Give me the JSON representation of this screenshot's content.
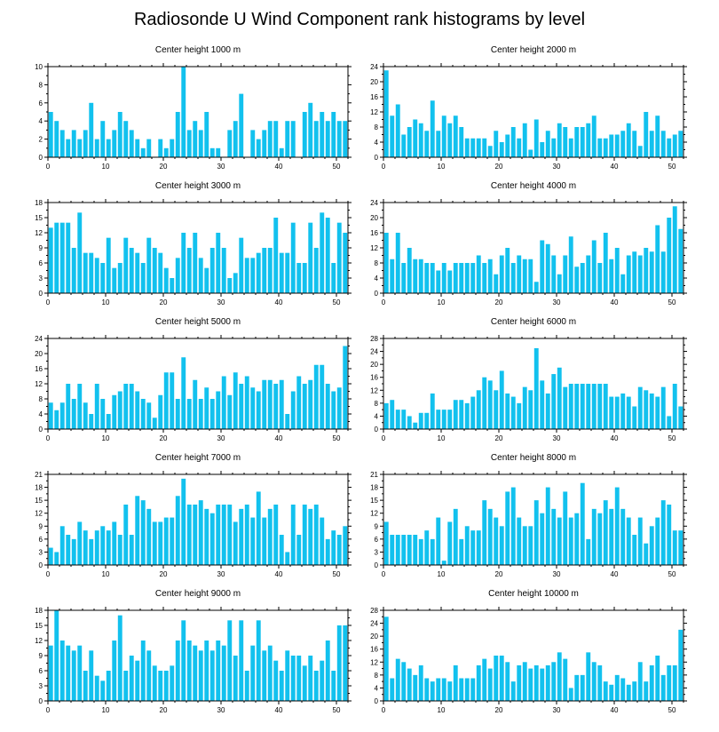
{
  "title": "Radiosonde U Wind Component rank histograms by level",
  "chart_data": [
    {
      "type": "bar",
      "title": "Center height 1000 m",
      "xlim": [
        0,
        52
      ],
      "ylim": [
        0,
        10
      ],
      "xticks": [
        0,
        10,
        20,
        30,
        40,
        50
      ],
      "yticks": [
        0,
        2,
        4,
        6,
        8,
        10
      ],
      "values": [
        5,
        4,
        3,
        2,
        3,
        2,
        3,
        6,
        2,
        4,
        2,
        3,
        5,
        4,
        3,
        2,
        1,
        2,
        0,
        2,
        1,
        2,
        5,
        10,
        3,
        4,
        3,
        5,
        1,
        1,
        0,
        3,
        4,
        7,
        0,
        3,
        2,
        3,
        4,
        4,
        1,
        4,
        4,
        0,
        5,
        6,
        4,
        5,
        4,
        5,
        4,
        4
      ]
    },
    {
      "type": "bar",
      "title": "Center height 2000 m",
      "xlim": [
        0,
        52
      ],
      "ylim": [
        0,
        24
      ],
      "xticks": [
        0,
        10,
        20,
        30,
        40,
        50
      ],
      "yticks": [
        0,
        4,
        8,
        12,
        16,
        20,
        24
      ],
      "values": [
        23,
        11,
        14,
        6,
        8,
        10,
        9,
        7,
        15,
        7,
        11,
        9,
        11,
        8,
        5,
        5,
        5,
        5,
        3,
        7,
        4,
        6,
        8,
        5,
        9,
        2,
        10,
        4,
        7,
        5,
        9,
        8,
        5,
        8,
        8,
        9,
        11,
        5,
        5,
        6,
        6,
        7,
        9,
        7,
        3,
        12,
        7,
        11,
        7,
        5,
        6,
        7
      ]
    },
    {
      "type": "bar",
      "title": "Center height 3000 m",
      "xlim": [
        0,
        52
      ],
      "ylim": [
        0,
        18
      ],
      "xticks": [
        0,
        10,
        20,
        30,
        40,
        50
      ],
      "yticks": [
        0,
        3,
        6,
        9,
        12,
        15,
        18
      ],
      "values": [
        13,
        14,
        14,
        14,
        9,
        16,
        8,
        8,
        7,
        6,
        11,
        5,
        6,
        11,
        9,
        8,
        6,
        11,
        9,
        8,
        5,
        3,
        7,
        12,
        9,
        12,
        7,
        5,
        9,
        12,
        9,
        3,
        4,
        11,
        7,
        7,
        8,
        9,
        9,
        15,
        8,
        8,
        14,
        6,
        6,
        14,
        9,
        16,
        15,
        6,
        14,
        12
      ]
    },
    {
      "type": "bar",
      "title": "Center height 4000 m",
      "xlim": [
        0,
        52
      ],
      "ylim": [
        0,
        24
      ],
      "xticks": [
        0,
        10,
        20,
        30,
        40,
        50
      ],
      "yticks": [
        0,
        4,
        8,
        12,
        16,
        20,
        24
      ],
      "values": [
        16,
        9,
        16,
        8,
        12,
        9,
        9,
        8,
        8,
        6,
        8,
        6,
        8,
        8,
        8,
        8,
        10,
        8,
        9,
        5,
        10,
        12,
        8,
        10,
        9,
        9,
        3,
        14,
        13,
        10,
        5,
        10,
        15,
        7,
        8,
        10,
        14,
        8,
        16,
        9,
        12,
        5,
        10,
        11,
        10,
        12,
        11,
        18,
        11,
        20,
        23,
        17
      ]
    },
    {
      "type": "bar",
      "title": "Center height 5000 m",
      "xlim": [
        0,
        52
      ],
      "ylim": [
        0,
        24
      ],
      "xticks": [
        0,
        10,
        20,
        30,
        40,
        50
      ],
      "yticks": [
        0,
        4,
        8,
        12,
        16,
        20,
        24
      ],
      "values": [
        7,
        5,
        7,
        12,
        8,
        12,
        7,
        4,
        12,
        8,
        4,
        9,
        10,
        12,
        12,
        10,
        8,
        7,
        3,
        9,
        15,
        15,
        8,
        19,
        8,
        13,
        8,
        11,
        8,
        10,
        14,
        9,
        15,
        12,
        14,
        11,
        10,
        13,
        13,
        12,
        13,
        4,
        10,
        14,
        12,
        13,
        17,
        17,
        12,
        10,
        11,
        22
      ]
    },
    {
      "type": "bar",
      "title": "Center height 6000 m",
      "xlim": [
        0,
        52
      ],
      "ylim": [
        0,
        28
      ],
      "xticks": [
        0,
        10,
        20,
        30,
        40,
        50
      ],
      "yticks": [
        0,
        4,
        8,
        12,
        16,
        20,
        24,
        28
      ],
      "values": [
        8,
        9,
        6,
        6,
        4,
        2,
        5,
        5,
        11,
        6,
        6,
        6,
        9,
        9,
        8,
        10,
        12,
        16,
        15,
        12,
        18,
        11,
        10,
        8,
        13,
        12,
        25,
        15,
        11,
        17,
        19,
        13,
        14,
        14,
        14,
        14,
        14,
        14,
        14,
        10,
        10,
        11,
        10,
        7,
        13,
        12,
        11,
        10,
        13,
        4,
        14,
        7
      ]
    },
    {
      "type": "bar",
      "title": "Center height 7000 m",
      "xlim": [
        0,
        52
      ],
      "ylim": [
        0,
        21
      ],
      "xticks": [
        0,
        10,
        20,
        30,
        40,
        50
      ],
      "yticks": [
        0,
        3,
        6,
        9,
        12,
        15,
        18,
        21
      ],
      "values": [
        4,
        3,
        9,
        7,
        6,
        10,
        8,
        6,
        8,
        9,
        8,
        10,
        7,
        14,
        7,
        16,
        15,
        13,
        10,
        10,
        11,
        11,
        16,
        20,
        14,
        14,
        15,
        13,
        12,
        14,
        14,
        14,
        10,
        13,
        14,
        11,
        17,
        11,
        13,
        14,
        7,
        3,
        14,
        7,
        14,
        13,
        14,
        11,
        6,
        8,
        7,
        9
      ]
    },
    {
      "type": "bar",
      "title": "Center height 8000 m",
      "xlim": [
        0,
        52
      ],
      "ylim": [
        0,
        21
      ],
      "xticks": [
        0,
        10,
        20,
        30,
        40,
        50
      ],
      "yticks": [
        0,
        3,
        6,
        9,
        12,
        15,
        18,
        21
      ],
      "values": [
        10,
        7,
        7,
        7,
        7,
        7,
        6,
        8,
        6,
        11,
        1,
        10,
        13,
        6,
        9,
        8,
        8,
        15,
        13,
        11,
        9,
        17,
        18,
        11,
        9,
        9,
        15,
        12,
        18,
        13,
        11,
        17,
        11,
        12,
        19,
        6,
        13,
        12,
        15,
        13,
        18,
        13,
        11,
        7,
        11,
        5,
        9,
        11,
        15,
        14,
        8,
        8
      ]
    },
    {
      "type": "bar",
      "title": "Center height 9000 m",
      "xlim": [
        0,
        52
      ],
      "ylim": [
        0,
        18
      ],
      "xticks": [
        0,
        10,
        20,
        30,
        40,
        50
      ],
      "yticks": [
        0,
        3,
        6,
        9,
        12,
        15,
        18
      ],
      "values": [
        11,
        18,
        12,
        11,
        10,
        11,
        6,
        10,
        5,
        4,
        6,
        12,
        17,
        6,
        9,
        8,
        12,
        10,
        7,
        6,
        6,
        7,
        12,
        16,
        12,
        11,
        10,
        12,
        10,
        12,
        11,
        16,
        9,
        16,
        6,
        11,
        16,
        10,
        11,
        8,
        6,
        10,
        9,
        9,
        7,
        9,
        6,
        8,
        12,
        6,
        15,
        15
      ]
    },
    {
      "type": "bar",
      "title": "Center height 10000 m",
      "xlim": [
        0,
        52
      ],
      "ylim": [
        0,
        28
      ],
      "xticks": [
        0,
        10,
        20,
        30,
        40,
        50
      ],
      "yticks": [
        0,
        4,
        8,
        12,
        16,
        20,
        24,
        28
      ],
      "values": [
        26,
        7,
        13,
        12,
        10,
        8,
        11,
        7,
        6,
        7,
        7,
        6,
        11,
        7,
        7,
        7,
        11,
        13,
        10,
        14,
        14,
        12,
        6,
        11,
        12,
        10,
        11,
        10,
        11,
        12,
        15,
        13,
        4,
        8,
        8,
        15,
        12,
        11,
        6,
        5,
        8,
        7,
        5,
        6,
        12,
        6,
        11,
        14,
        8,
        11,
        11,
        22
      ]
    }
  ]
}
